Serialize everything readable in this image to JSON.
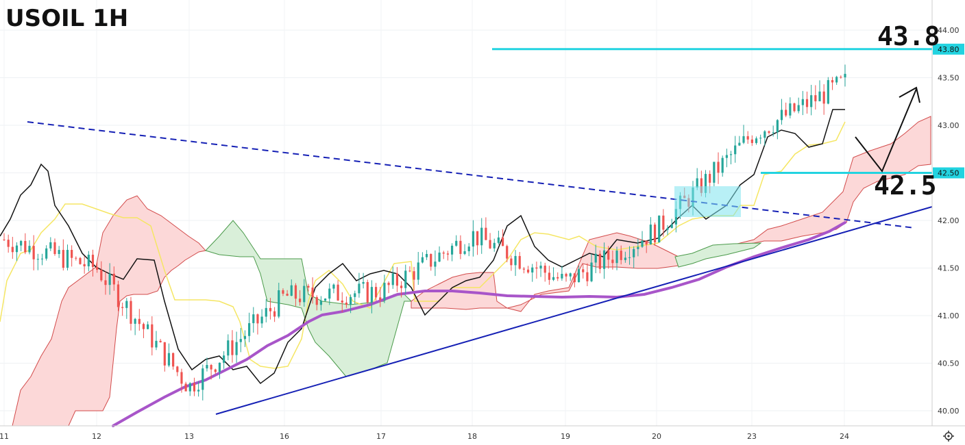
{
  "chart_data": {
    "type": "candlestick",
    "title": "USOIL 1H",
    "xlabel": "",
    "ylabel": "",
    "ylim": [
      39.85,
      44.1
    ],
    "y_ticks": [
      "44.00",
      "43.50",
      "43.00",
      "42.50",
      "42.00",
      "41.50",
      "41.00",
      "40.50",
      "40.00"
    ],
    "x_ticks": [
      "11",
      "12",
      "13",
      "16",
      "17",
      "18",
      "19",
      "20",
      "23",
      "24"
    ],
    "grid": true,
    "colors": {
      "up": "#26a69a",
      "down": "#ef5350",
      "tenkan": "#111111",
      "kijun": "#f5e663",
      "span_a": "#4a9a4a",
      "span_b": "#d24a4a",
      "cloud_bull": "#d9efd9",
      "cloud_bear": "#fcd8d8",
      "ma": "#a855c9",
      "trend": "#1520b5",
      "level": "#22d3e0"
    },
    "levels": [
      {
        "value": 43.8,
        "label": "43.8",
        "tag": "43.80"
      },
      {
        "value": 42.5,
        "label": "42.5",
        "tag": "42.50"
      }
    ],
    "series": [
      {
        "name": "",
        "kind": "close_approx",
        "x": [
          "11",
          "12",
          "13",
          "16",
          "17",
          "18",
          "19",
          "20",
          "23",
          "24"
        ],
        "values": [
          41.8,
          41.5,
          40.25,
          41.2,
          41.25,
          41.85,
          41.35,
          41.9,
          42.9,
          43.45
        ]
      }
    ]
  }
}
